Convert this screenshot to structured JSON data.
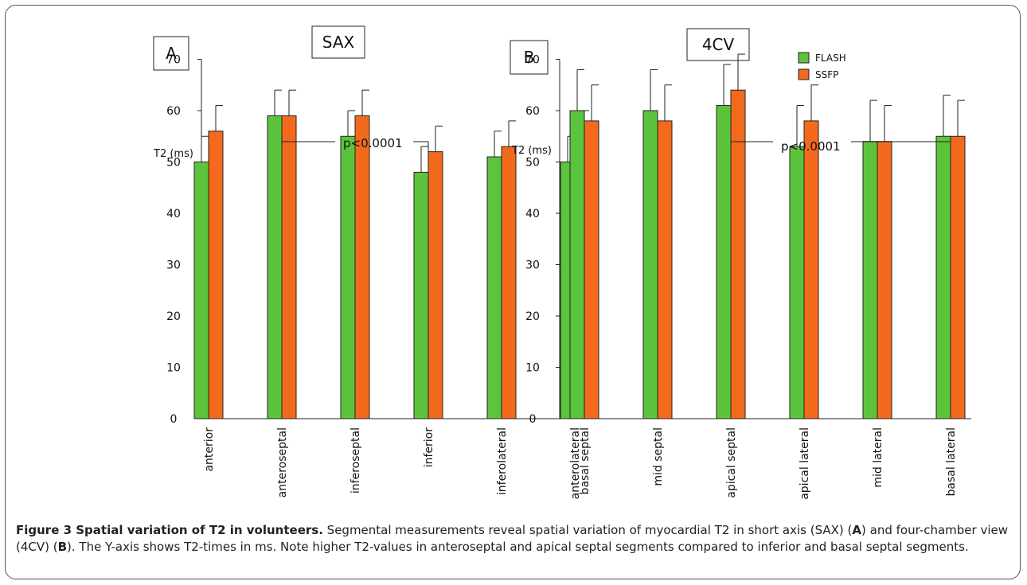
{
  "figure": {
    "caption_title": "Figure 3 Spatial variation of T2 in volunteers.",
    "caption_text_1": " Segmental measurements reveal spatial variation of myocardial T2 in short axis (SAX) (",
    "caption_bold_a": "A",
    "caption_text_2": ") and four-chamber view (4CV) (",
    "caption_bold_b": "B",
    "caption_text_3": "). The Y-axis shows T2-times in ms. Note higher T2-values in anteroseptal and apical septal segments compared to inferior and basal septal segments."
  },
  "legend": [
    {
      "name": "FLASH",
      "color": "#5cc43c"
    },
    {
      "name": "SSFP",
      "color": "#f36a1c"
    }
  ],
  "chart_data": [
    {
      "type": "bar",
      "panel_label": "A",
      "view_label": "SAX",
      "ylabel": "T2 (ms)",
      "ylim": [
        0,
        70
      ],
      "yticks": [
        0,
        10,
        20,
        30,
        40,
        50,
        60,
        70
      ],
      "categories": [
        "anterior",
        "anteroseptal",
        "inferoseptal",
        "inferior",
        "inferolateral",
        "anterolateral"
      ],
      "series": [
        {
          "name": "FLASH",
          "values": [
            50,
            59,
            55,
            48,
            51,
            50
          ],
          "errors": [
            5,
            5,
            5,
            5,
            5,
            5
          ]
        },
        {
          "name": "SSFP",
          "values": [
            56,
            59,
            59,
            52,
            53,
            55
          ],
          "errors": [
            5,
            5,
            5,
            5,
            5,
            5
          ]
        }
      ],
      "annotation": {
        "text": "p<0.0001",
        "from_category": "anteroseptal",
        "to_category": "inferior"
      }
    },
    {
      "type": "bar",
      "panel_label": "B",
      "view_label": "4CV",
      "ylabel": "T2 (ms)",
      "ylim": [
        0,
        70
      ],
      "yticks": [
        0,
        10,
        20,
        30,
        40,
        50,
        60,
        70
      ],
      "categories": [
        "basal septal",
        "mid septal",
        "apical septal",
        "apical lateral",
        "mid lateral",
        "basal lateral"
      ],
      "series": [
        {
          "name": "FLASH",
          "values": [
            60,
            60,
            61,
            53,
            54,
            55
          ],
          "errors": [
            8,
            8,
            8,
            8,
            8,
            8
          ]
        },
        {
          "name": "SSFP",
          "values": [
            58,
            58,
            64,
            58,
            54,
            55
          ],
          "errors": [
            7,
            7,
            7,
            7,
            7,
            7
          ]
        }
      ],
      "annotation": {
        "text": "p<0.0001",
        "from_category": "apical septal",
        "to_category": "basal lateral"
      }
    }
  ]
}
